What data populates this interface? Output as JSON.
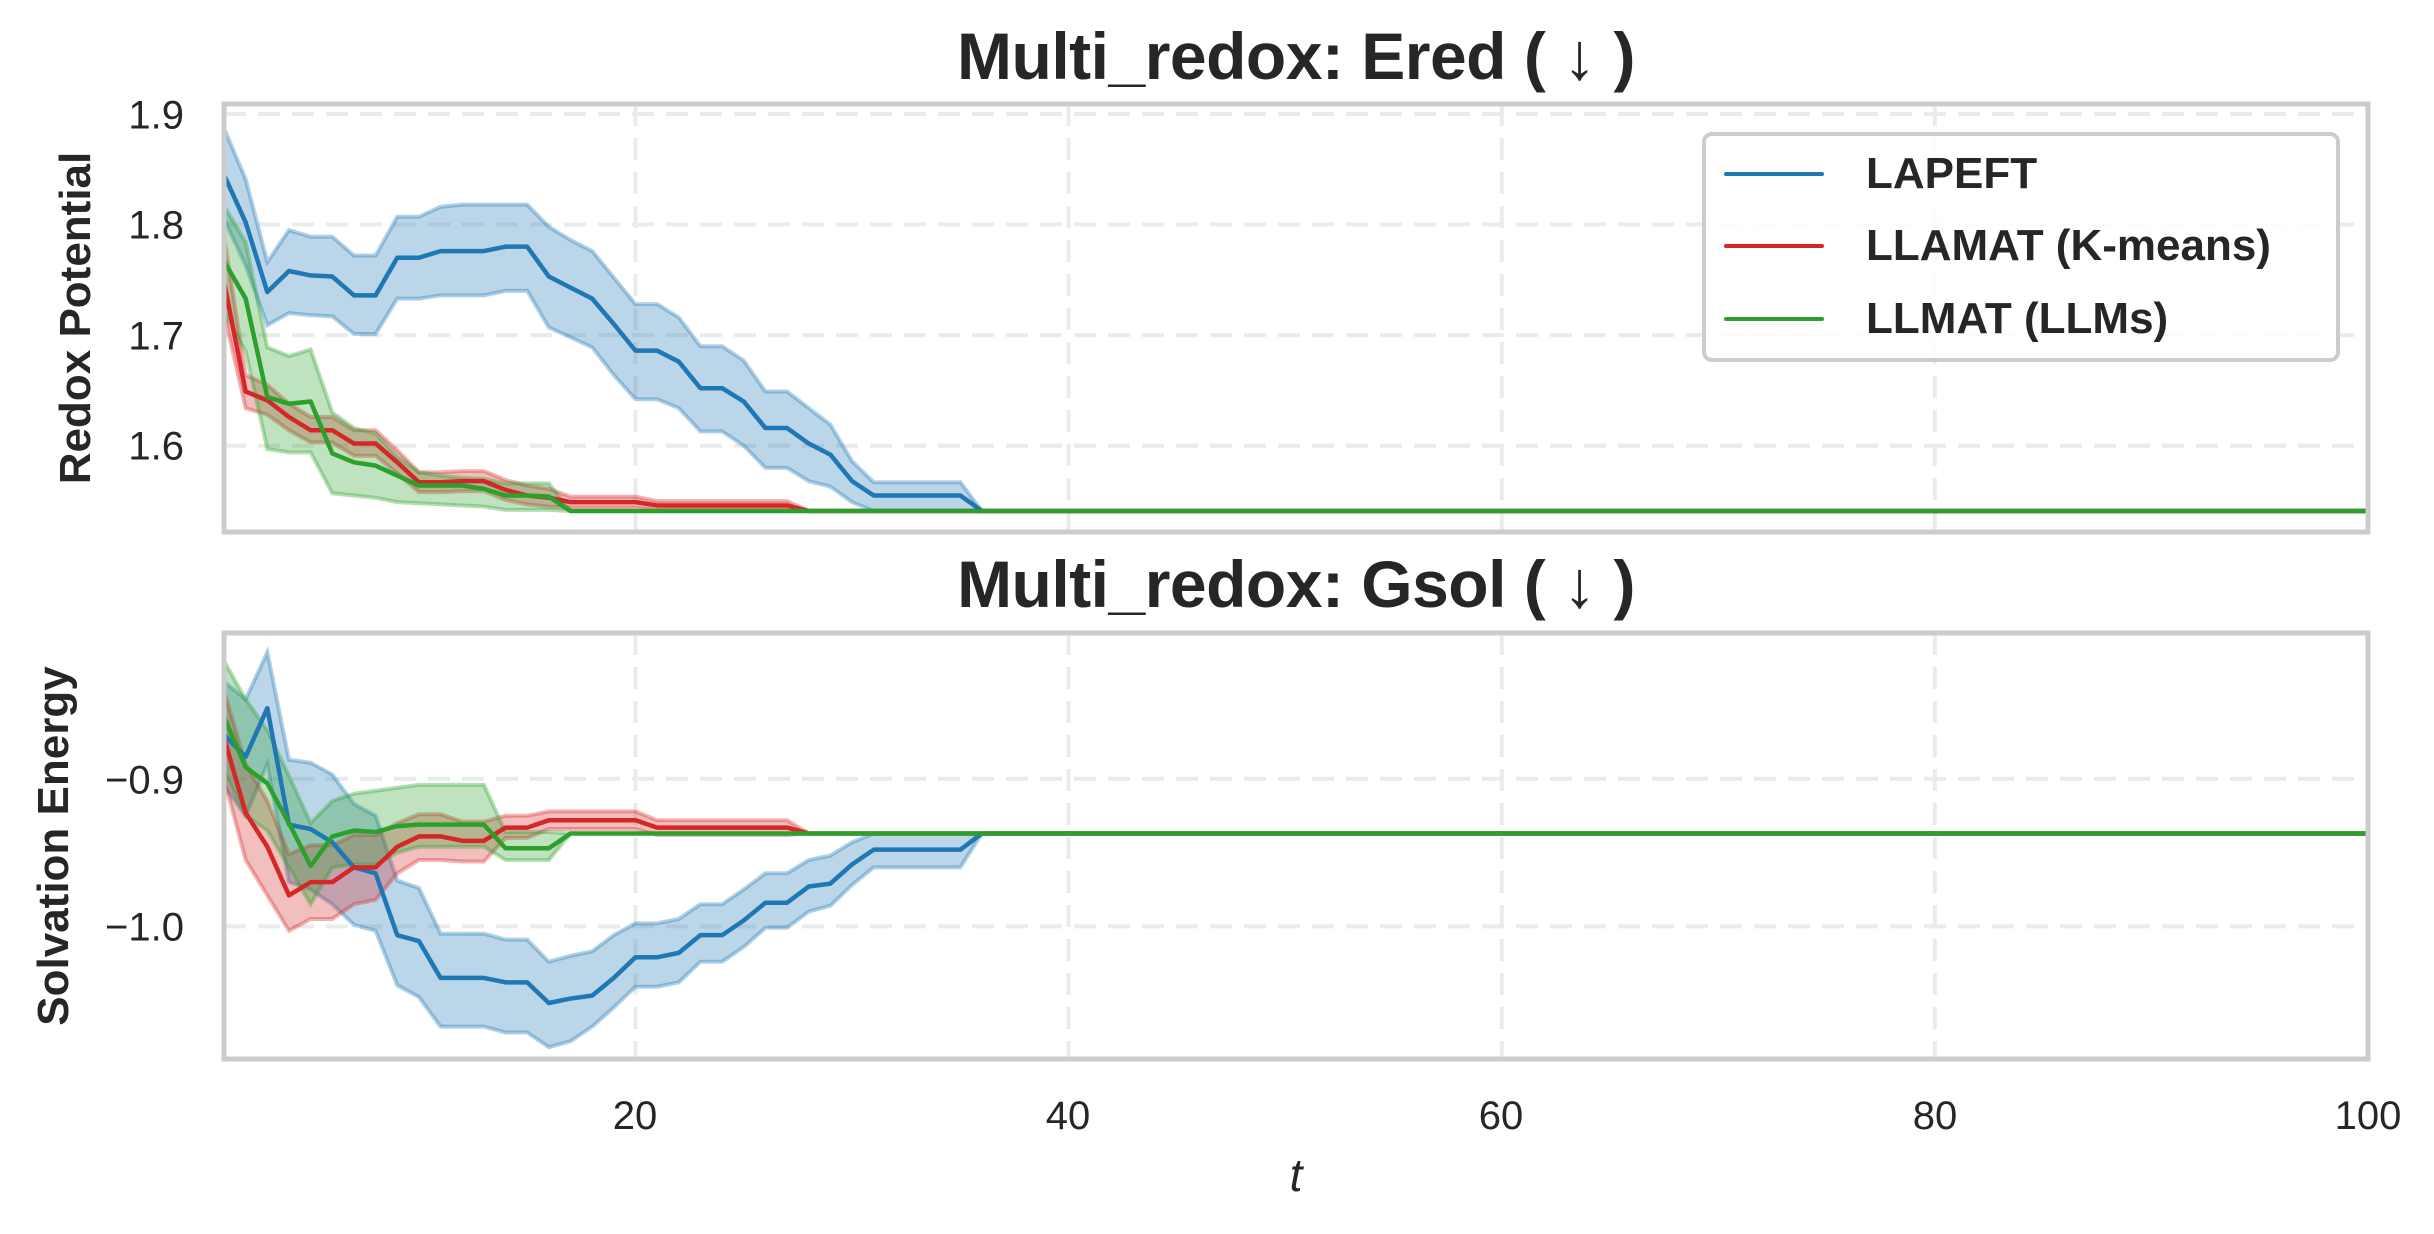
{
  "figure": {
    "titles": [
      "Multi_redox: Ered ( ↓ )",
      "Multi_redox: Gsol ( ↓ )"
    ],
    "ylabels": [
      "Redox Potential",
      "Solvation Energy"
    ],
    "xlabel": "t",
    "xticks": [
      "20",
      "40",
      "60",
      "80",
      "100"
    ],
    "yticks_top": [
      "1.9",
      "1.8",
      "1.7",
      "1.6"
    ],
    "yticks_bottom": [
      "−0.9",
      "−1.0"
    ],
    "legend": [
      {
        "label": "LAPEFT",
        "color": "#1f77b4"
      },
      {
        "label": "LLAMAT (K-means)",
        "color": "#d62728"
      },
      {
        "label": "LLMAT (LLMs)",
        "color": "#2ca02c"
      }
    ],
    "colors": {
      "frame": "#cccccc",
      "grid": "#ebebeb",
      "text": "#262626"
    }
  },
  "chart_data": [
    {
      "type": "line",
      "title": "Multi_redox: Ered ( ↓ )",
      "xlabel": "t",
      "ylabel": "Redox Potential",
      "xlim": [
        1,
        100
      ],
      "ylim": [
        1.522,
        1.909
      ],
      "xticks": [
        20,
        40,
        60,
        80,
        100
      ],
      "yticks": [
        1.6,
        1.7,
        1.8,
        1.9
      ],
      "grid": true,
      "legend_position": "upper right",
      "shaded_band": "mean ± spread",
      "series": [
        {
          "name": "LAPEFT",
          "color": "#1f77b4",
          "mean": [
            1.845,
            1.802,
            1.739,
            1.758,
            1.754,
            1.753,
            1.736,
            1.736,
            1.77,
            1.77,
            1.776,
            1.776,
            1.776,
            1.78,
            1.78,
            1.753,
            1.743,
            1.733,
            1.71,
            1.686,
            1.686,
            1.676,
            1.652,
            1.652,
            1.64,
            1.616,
            1.616,
            1.602,
            1.592,
            1.568,
            1.555,
            1.555,
            1.555,
            1.555,
            1.555,
            1.541
          ],
          "lower": [
            1.805,
            1.763,
            1.709,
            1.72,
            1.718,
            1.717,
            1.701,
            1.701,
            1.733,
            1.733,
            1.736,
            1.736,
            1.736,
            1.74,
            1.74,
            1.707,
            1.698,
            1.689,
            1.664,
            1.642,
            1.642,
            1.634,
            1.613,
            1.613,
            1.6,
            1.58,
            1.58,
            1.568,
            1.563,
            1.549,
            1.541,
            1.541,
            1.541,
            1.541,
            1.541,
            1.541
          ],
          "upper": [
            1.887,
            1.841,
            1.766,
            1.795,
            1.789,
            1.789,
            1.772,
            1.772,
            1.807,
            1.807,
            1.816,
            1.818,
            1.818,
            1.818,
            1.818,
            1.798,
            1.786,
            1.776,
            1.752,
            1.728,
            1.728,
            1.716,
            1.69,
            1.69,
            1.677,
            1.649,
            1.649,
            1.634,
            1.619,
            1.586,
            1.567,
            1.567,
            1.567,
            1.567,
            1.567,
            1.541
          ],
          "final_value": 1.541
        },
        {
          "name": "LLAMAT (K-means)",
          "color": "#d62728",
          "mean": [
            1.748,
            1.649,
            1.641,
            1.626,
            1.614,
            1.614,
            1.602,
            1.602,
            1.585,
            1.567,
            1.567,
            1.568,
            1.568,
            1.56,
            1.555,
            1.553,
            1.549,
            1.549,
            1.549,
            1.549,
            1.546,
            1.546,
            1.546,
            1.546,
            1.546,
            1.546,
            1.546,
            1.541
          ],
          "lower": [
            1.72,
            1.634,
            1.628,
            1.614,
            1.603,
            1.603,
            1.591,
            1.591,
            1.575,
            1.558,
            1.558,
            1.559,
            1.559,
            1.551,
            1.547,
            1.545,
            1.544,
            1.544,
            1.544,
            1.544,
            1.542,
            1.542,
            1.542,
            1.542,
            1.542,
            1.542,
            1.542,
            1.541
          ],
          "upper": [
            1.79,
            1.664,
            1.655,
            1.638,
            1.626,
            1.626,
            1.614,
            1.614,
            1.596,
            1.576,
            1.576,
            1.577,
            1.577,
            1.569,
            1.564,
            1.561,
            1.554,
            1.554,
            1.554,
            1.554,
            1.55,
            1.55,
            1.55,
            1.55,
            1.55,
            1.55,
            1.55,
            1.541
          ],
          "final_value": 1.541
        },
        {
          "name": "LLMAT (LLMs)",
          "color": "#2ca02c",
          "mean": [
            1.767,
            1.733,
            1.644,
            1.638,
            1.64,
            1.593,
            1.585,
            1.582,
            1.573,
            1.564,
            1.564,
            1.564,
            1.561,
            1.555,
            1.555,
            1.554,
            1.541
          ],
          "lower": [
            1.721,
            1.685,
            1.597,
            1.594,
            1.594,
            1.557,
            1.555,
            1.553,
            1.549,
            1.548,
            1.547,
            1.546,
            1.545,
            1.542,
            1.542,
            1.542,
            1.541
          ],
          "upper": [
            1.817,
            1.784,
            1.689,
            1.681,
            1.687,
            1.63,
            1.616,
            1.611,
            1.59,
            1.576,
            1.573,
            1.571,
            1.57,
            1.566,
            1.566,
            1.566,
            1.541
          ],
          "final_value": 1.541
        }
      ]
    },
    {
      "type": "line",
      "title": "Multi_redox: Gsol ( ↓ )",
      "xlabel": "t",
      "ylabel": "Solvation Energy",
      "xlim": [
        1,
        100
      ],
      "ylim": [
        -1.09,
        -0.801
      ],
      "xticks": [
        20,
        40,
        60,
        80,
        100
      ],
      "yticks": [
        -1.0,
        -0.9
      ],
      "grid": true,
      "shaded_band": "mean ± spread",
      "series": [
        {
          "name": "LAPEFT",
          "color": "#1f77b4",
          "mean": [
            -0.87,
            -0.885,
            -0.852,
            -0.931,
            -0.934,
            -0.943,
            -0.96,
            -0.964,
            -1.006,
            -1.01,
            -1.035,
            -1.035,
            -1.035,
            -1.038,
            -1.038,
            -1.052,
            -1.049,
            -1.047,
            -1.035,
            -1.021,
            -1.021,
            -1.018,
            -1.006,
            -1.006,
            -0.996,
            -0.984,
            -0.984,
            -0.973,
            -0.971,
            -0.958,
            -0.948,
            -0.948,
            -0.948,
            -0.948,
            -0.948,
            -0.937
          ],
          "lower": [
            -0.905,
            -0.925,
            -0.89,
            -0.97,
            -0.975,
            -0.985,
            -0.999,
            -1.003,
            -1.04,
            -1.048,
            -1.068,
            -1.068,
            -1.068,
            -1.072,
            -1.072,
            -1.082,
            -1.078,
            -1.068,
            -1.055,
            -1.041,
            -1.041,
            -1.038,
            -1.024,
            -1.024,
            -1.014,
            -1.001,
            -1.001,
            -0.99,
            -0.986,
            -0.972,
            -0.96,
            -0.96,
            -0.96,
            -0.96,
            -0.96,
            -0.937
          ],
          "upper": [
            -0.834,
            -0.846,
            -0.814,
            -0.887,
            -0.889,
            -0.897,
            -0.917,
            -0.925,
            -0.969,
            -0.974,
            -1.005,
            -1.005,
            -1.005,
            -1.009,
            -1.009,
            -1.024,
            -1.02,
            -1.017,
            -1.006,
            -0.998,
            -0.998,
            -0.995,
            -0.985,
            -0.985,
            -0.975,
            -0.964,
            -0.964,
            -0.955,
            -0.952,
            -0.943,
            -0.937,
            -0.937,
            -0.937,
            -0.937,
            -0.937,
            -0.937
          ],
          "final_value": -0.937
        },
        {
          "name": "LLAMAT (K-means)",
          "color": "#d62728",
          "mean": [
            -0.872,
            -0.923,
            -0.946,
            -0.979,
            -0.97,
            -0.97,
            -0.96,
            -0.96,
            -0.946,
            -0.939,
            -0.939,
            -0.942,
            -0.942,
            -0.933,
            -0.933,
            -0.928,
            -0.928,
            -0.928,
            -0.928,
            -0.928,
            -0.933,
            -0.933,
            -0.933,
            -0.933,
            -0.933,
            -0.933,
            -0.933,
            -0.937
          ],
          "lower": [
            -0.9,
            -0.955,
            -0.979,
            -1.003,
            -0.995,
            -0.995,
            -0.985,
            -0.982,
            -0.964,
            -0.955,
            -0.955,
            -0.956,
            -0.956,
            -0.94,
            -0.94,
            -0.934,
            -0.934,
            -0.934,
            -0.934,
            -0.934,
            -0.938,
            -0.938,
            -0.938,
            -0.938,
            -0.938,
            -0.938,
            -0.938,
            -0.937
          ],
          "upper": [
            -0.84,
            -0.89,
            -0.915,
            -0.951,
            -0.945,
            -0.945,
            -0.938,
            -0.938,
            -0.93,
            -0.924,
            -0.924,
            -0.929,
            -0.929,
            -0.925,
            -0.925,
            -0.922,
            -0.922,
            -0.922,
            -0.922,
            -0.922,
            -0.928,
            -0.928,
            -0.928,
            -0.928,
            -0.928,
            -0.928,
            -0.928,
            -0.937
          ],
          "final_value": -0.937
        },
        {
          "name": "LLMAT (LLMs)",
          "color": "#2ca02c",
          "mean": [
            -0.858,
            -0.892,
            -0.903,
            -0.93,
            -0.959,
            -0.939,
            -0.935,
            -0.936,
            -0.932,
            -0.931,
            -0.931,
            -0.931,
            -0.931,
            -0.947,
            -0.947,
            -0.947,
            -0.937
          ],
          "lower": [
            -0.895,
            -0.925,
            -0.935,
            -0.96,
            -0.985,
            -0.96,
            -0.958,
            -0.958,
            -0.95,
            -0.946,
            -0.946,
            -0.946,
            -0.946,
            -0.955,
            -0.955,
            -0.955,
            -0.937
          ],
          "upper": [
            -0.82,
            -0.846,
            -0.867,
            -0.898,
            -0.93,
            -0.915,
            -0.91,
            -0.908,
            -0.906,
            -0.904,
            -0.904,
            -0.904,
            -0.904,
            -0.936,
            -0.936,
            -0.936,
            -0.937
          ],
          "final_value": -0.937
        }
      ]
    }
  ]
}
